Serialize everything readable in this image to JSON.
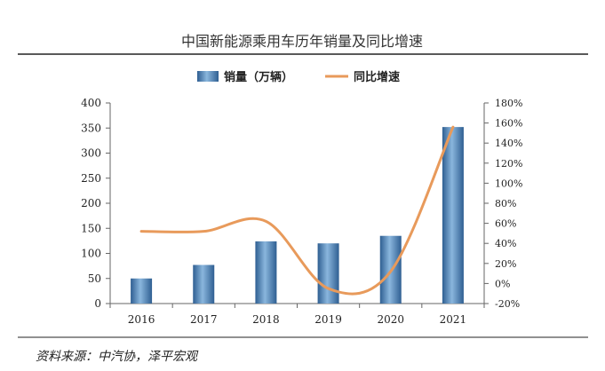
{
  "chart_data": {
    "type": "bar",
    "title": "中国新能源乘用车历年销量及同比增速",
    "categories": [
      "2016",
      "2017",
      "2018",
      "2019",
      "2020",
      "2021"
    ],
    "series": [
      {
        "name": "销量（万辆）",
        "kind": "bar",
        "axis": "left",
        "color": "#4a7fb3",
        "values": [
          50,
          77,
          124,
          120,
          135,
          352
        ]
      },
      {
        "name": "同比增速",
        "kind": "line",
        "axis": "right",
        "color": "#e89a5b",
        "values": [
          52,
          52,
          62,
          -5,
          12,
          156
        ]
      }
    ],
    "yaxis_left": {
      "ylim": [
        0,
        400
      ],
      "ticks": [
        "0",
        "50",
        "100",
        "150",
        "200",
        "250",
        "300",
        "350",
        "400"
      ]
    },
    "yaxis_right": {
      "ylim": [
        -20,
        180
      ],
      "ticks": [
        "-20%",
        "0%",
        "20%",
        "40%",
        "60%",
        "80%",
        "100%",
        "120%",
        "140%",
        "160%",
        "180%"
      ]
    },
    "legend_position": "top-center",
    "grid": false,
    "source": "资料来源：中汽协，泽平宏观"
  }
}
